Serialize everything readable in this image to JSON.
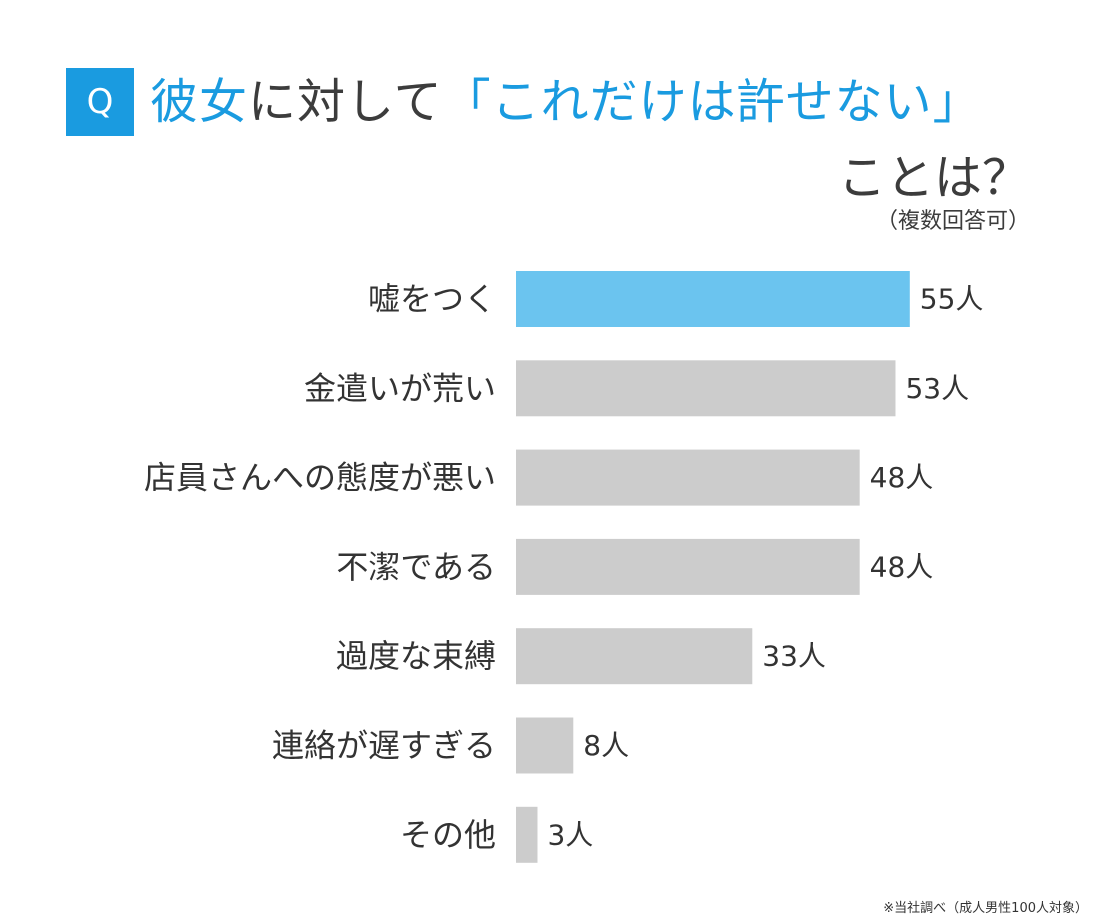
{
  "header": {
    "badge": "Q",
    "title_part1": "彼女",
    "title_part2": "に対して",
    "title_part3": "「これだけは許せない」",
    "title_part4": "ことは？",
    "subtitle": "（複数回答可）"
  },
  "footnote": "※当社調べ（成人男性100人対象）",
  "colors": {
    "accent": "#1a9be0",
    "highlight_bar": "#6bc4ef",
    "bar": "#cccccc",
    "text": "#333333"
  },
  "chart_data": {
    "type": "bar",
    "orientation": "horizontal",
    "categories": [
      "嘘をつく",
      "金遣いが荒い",
      "店員さんへの態度が悪い",
      "不潔である",
      "過度な束縛",
      "連絡が遅すぎる",
      "その他"
    ],
    "values": [
      55,
      53,
      48,
      48,
      33,
      8,
      3
    ],
    "value_labels": [
      "55人",
      "53人",
      "48人",
      "48人",
      "33人",
      "8人",
      "3人"
    ],
    "highlight_index": 0,
    "xlabel": "",
    "ylabel": "",
    "grid": false,
    "legend": "none"
  }
}
